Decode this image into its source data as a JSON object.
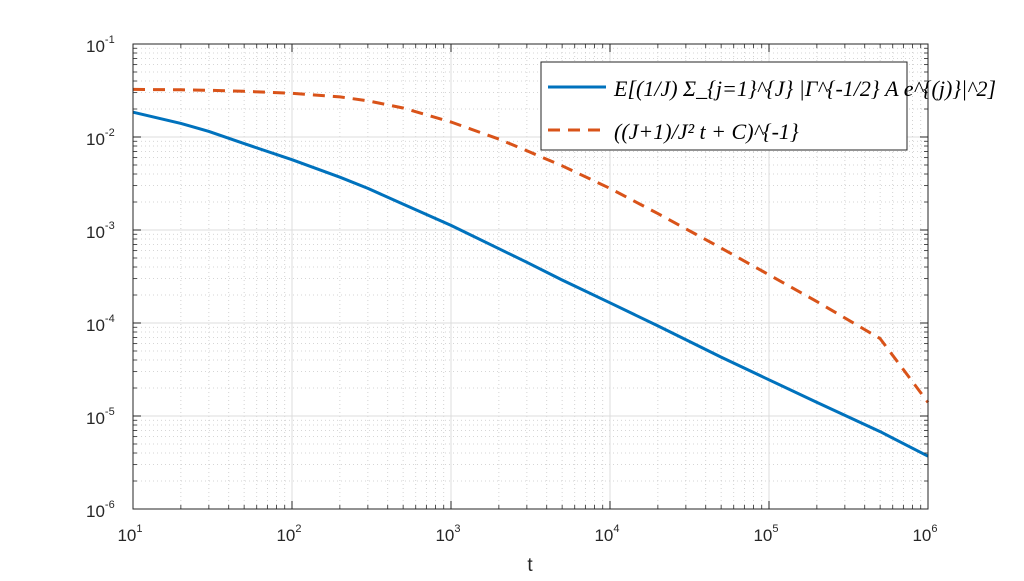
{
  "chart_data": {
    "type": "line",
    "xlabel": "t",
    "ylabel": "",
    "xscale": "log",
    "yscale": "log",
    "xlim": [
      10,
      1000000
    ],
    "ylim": [
      1e-06,
      0.1
    ],
    "grid": "major and minor",
    "legend_position": "top-right",
    "x_ticks": [
      {
        "value": 10,
        "base": "10",
        "exp": "1"
      },
      {
        "value": 100,
        "base": "10",
        "exp": "2"
      },
      {
        "value": 1000,
        "base": "10",
        "exp": "3"
      },
      {
        "value": 10000,
        "base": "10",
        "exp": "4"
      },
      {
        "value": 100000,
        "base": "10",
        "exp": "5"
      },
      {
        "value": 1000000,
        "base": "10",
        "exp": "6"
      }
    ],
    "y_ticks": [
      {
        "value": 0.1,
        "base": "10",
        "exp": "-1"
      },
      {
        "value": 0.01,
        "base": "10",
        "exp": "-2"
      },
      {
        "value": 0.001,
        "base": "10",
        "exp": "-3"
      },
      {
        "value": 0.0001,
        "base": "10",
        "exp": "-4"
      },
      {
        "value": 1e-05,
        "base": "10",
        "exp": "-5"
      },
      {
        "value": 1e-06,
        "base": "10",
        "exp": "-6"
      }
    ],
    "series": [
      {
        "name": "E[(1/J) Σ_{j=1}^{J} |Γ^{-1/2} A e^{(j)}|^2]",
        "color": "#0072BD",
        "style": "solid",
        "x": [
          10,
          20,
          30,
          50,
          100,
          200,
          300,
          500,
          1000,
          2000,
          3000,
          5000,
          10000,
          20000,
          50000,
          100000,
          200000,
          500000,
          1000000
        ],
        "y": [
          0.0185,
          0.014,
          0.0115,
          0.0085,
          0.0057,
          0.0037,
          0.0028,
          0.0019,
          0.00112,
          0.00063,
          0.00045,
          0.00029,
          0.000165,
          9.3e-05,
          4.3e-05,
          2.45e-05,
          1.4e-05,
          6.8e-06,
          3.7e-06
        ]
      },
      {
        "name": "((J+1)/J² t + C)^{-1}",
        "color": "#D95319",
        "style": "dashed",
        "x": [
          10,
          20,
          30,
          50,
          100,
          200,
          300,
          500,
          1000,
          2000,
          3000,
          5000,
          10000,
          20000,
          50000,
          100000,
          200000,
          500000,
          1000000
        ],
        "y": [
          0.0325,
          0.0322,
          0.0318,
          0.031,
          0.0295,
          0.027,
          0.0245,
          0.0205,
          0.0145,
          0.0095,
          0.0071,
          0.0049,
          0.0028,
          0.0015,
          0.00064,
          0.00033,
          0.00017,
          6.8e-05,
          1.4e-05
        ]
      }
    ]
  }
}
